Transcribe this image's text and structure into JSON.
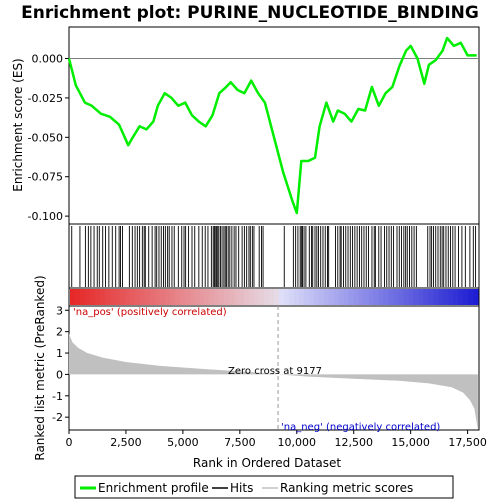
{
  "chart_data": {
    "type": "line",
    "title": "Enrichment plot: PURINE_NUCLEOTIDE_BINDING",
    "xlabel": "Rank in Ordered Dataset",
    "ylabel_top": "Enrichment score (ES)",
    "ylabel_bottom": "Ranked list metric (PreRanked)",
    "x_range": [
      0,
      18000
    ],
    "x_ticks": [
      0,
      2500,
      5000,
      7500,
      10000,
      12500,
      15000,
      17500
    ],
    "x_tick_labels": [
      "0",
      "2,500",
      "5,000",
      "7,500",
      "10,000",
      "12,500",
      "15,000",
      "17,500"
    ],
    "es_range": [
      -0.105,
      0.02
    ],
    "es_ticks": [
      0.0,
      -0.025,
      -0.05,
      -0.075,
      -0.1
    ],
    "es_tick_labels": [
      "0.000",
      "-0.025",
      "-0.050",
      "-0.075",
      "-0.100"
    ],
    "metric_range": [
      -2.6,
      3.2
    ],
    "metric_ticks": [
      3,
      2,
      1,
      0,
      -1,
      -2
    ],
    "metric_tick_labels": [
      "3",
      "2",
      "1",
      "0",
      "-1",
      "-2"
    ],
    "enrichment_profile": {
      "x": [
        0,
        300,
        700,
        1000,
        1400,
        1800,
        2200,
        2600,
        2800,
        3100,
        3400,
        3700,
        3900,
        4200,
        4500,
        4800,
        5100,
        5400,
        5700,
        6000,
        6300,
        6600,
        6900,
        7100,
        7400,
        7700,
        8000,
        8300,
        8600,
        9000,
        9400,
        9800,
        10000,
        10200,
        10500,
        10800,
        11000,
        11300,
        11600,
        11800,
        12100,
        12400,
        12700,
        13000,
        13300,
        13600,
        13900,
        14200,
        14500,
        14800,
        15000,
        15300,
        15600,
        15800,
        16100,
        16400,
        16600,
        16900,
        17200,
        17500,
        17900
      ],
      "y": [
        0.0,
        -0.017,
        -0.028,
        -0.03,
        -0.035,
        -0.037,
        -0.042,
        -0.055,
        -0.05,
        -0.043,
        -0.045,
        -0.04,
        -0.03,
        -0.022,
        -0.025,
        -0.03,
        -0.028,
        -0.036,
        -0.04,
        -0.043,
        -0.036,
        -0.022,
        -0.018,
        -0.015,
        -0.02,
        -0.022,
        -0.014,
        -0.022,
        -0.028,
        -0.05,
        -0.072,
        -0.09,
        -0.098,
        -0.065,
        -0.065,
        -0.063,
        -0.043,
        -0.028,
        -0.04,
        -0.033,
        -0.035,
        -0.04,
        -0.032,
        -0.033,
        -0.018,
        -0.03,
        -0.022,
        -0.018,
        -0.005,
        0.005,
        0.008,
        0.0,
        -0.016,
        -0.004,
        -0.001,
        0.005,
        0.013,
        0.008,
        0.01,
        0.002,
        0.002
      ]
    },
    "metric_curve": {
      "x": [
        0,
        150,
        400,
        800,
        1500,
        2500,
        4000,
        6000,
        8000,
        9177,
        10500,
        12500,
        14500,
        15800,
        16800,
        17300,
        17600,
        17800,
        17950
      ],
      "y": [
        1.9,
        1.5,
        1.25,
        1.0,
        0.78,
        0.58,
        0.4,
        0.25,
        0.11,
        0.0,
        -0.1,
        -0.2,
        -0.3,
        -0.42,
        -0.6,
        -0.85,
        -1.2,
        -1.6,
        -2.6
      ]
    },
    "hits": [
      120,
      480,
      720,
      850,
      960,
      1100,
      1240,
      1330,
      1480,
      1600,
      1750,
      1900,
      2050,
      2200,
      2260,
      2350,
      2650,
      2780,
      2900,
      3000,
      3100,
      3220,
      3300,
      3350,
      3500,
      3650,
      3780,
      3850,
      3950,
      4050,
      4150,
      4230,
      4330,
      4400,
      4520,
      4620,
      4800,
      4950,
      5050,
      5120,
      5250,
      5400,
      5520,
      5700,
      5850,
      5980,
      6100,
      6250,
      6330,
      6380,
      6420,
      6480,
      6530,
      6580,
      6650,
      6720,
      6800,
      6860,
      6920,
      6990,
      7060,
      7150,
      7250,
      7330,
      7450,
      7600,
      7700,
      7800,
      7900,
      7960,
      8050,
      8120,
      8350,
      8450,
      8520,
      9450,
      9850,
      9950,
      10050,
      10150,
      10200,
      10250,
      10320,
      10400,
      10550,
      10650,
      10700,
      10800,
      10880,
      10950,
      11050,
      11150,
      11250,
      11350,
      11400,
      11700,
      11800,
      11900,
      11950,
      12050,
      12150,
      12250,
      12350,
      12450,
      12550,
      12650,
      12750,
      12850,
      12950,
      13050,
      13150,
      13300,
      13400,
      13450,
      13600,
      13700,
      13850,
      13950,
      14050,
      14150,
      14250,
      14400,
      14500,
      14600,
      14700,
      14780,
      14850,
      14950,
      15050,
      15150,
      15250,
      15750,
      15850,
      15920,
      16000,
      16100,
      16200,
      16300,
      16380,
      16450,
      16550,
      16650,
      16750,
      16850,
      16950,
      17100,
      17250,
      17400,
      17600,
      17750,
      17850
    ],
    "zero_cross": 9177,
    "annotations": {
      "pos": "'na_pos' (positively correlated)",
      "neg": "'na_neg' (negatively correlated)",
      "zero": "Zero cross at 9177"
    },
    "colors": {
      "profile": "#00ee00",
      "hits": "#000000",
      "metric_fill": "#c0c0c0",
      "pos_text": "#cc0000",
      "neg_text": "#0000cc"
    },
    "legend": {
      "items": [
        "Enrichment profile",
        "Hits",
        "Ranking metric scores"
      ],
      "placement": "bottom"
    }
  }
}
